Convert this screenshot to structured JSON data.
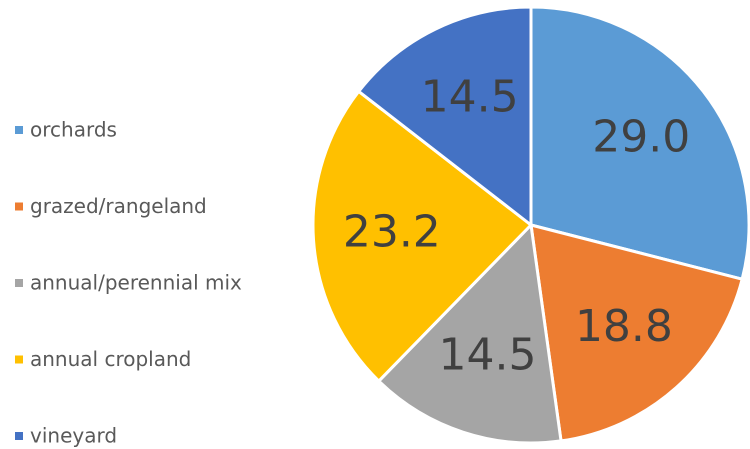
{
  "chart_data": {
    "type": "pie",
    "categories": [
      "orchards",
      "grazed/rangeland",
      "annual/perennial mix",
      "annual cropland",
      "vineyard"
    ],
    "values": [
      29.0,
      18.8,
      14.5,
      23.2,
      14.5
    ],
    "value_labels": [
      "29.0",
      "18.8",
      "14.5",
      "23.2",
      "14.5"
    ],
    "colors": [
      "#5b9bd5",
      "#ed7d31",
      "#a5a5a5",
      "#ffc000",
      "#4472c4"
    ],
    "legend": "left"
  }
}
